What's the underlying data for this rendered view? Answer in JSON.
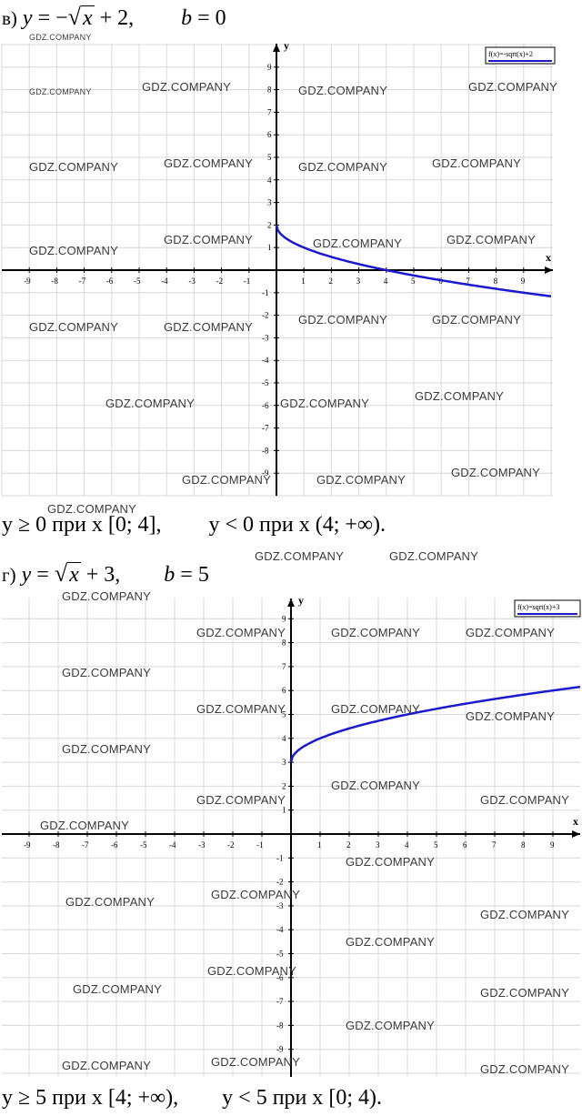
{
  "watermark": "GDZ.COMPANY",
  "part_v": {
    "label": "в)",
    "formula_y": "y",
    "formula_eq": "= −",
    "formula_x": "x",
    "formula_rest": "+ 2,",
    "b_label": "b",
    "b_eq": "= 0",
    "legend": "f(x)=-sqrt(x)+2",
    "answer_left": "y ≥ 0 при x [0; 4],",
    "answer_right": "y < 0 при x (4;  +∞)."
  },
  "part_g": {
    "label": "г)",
    "formula_y": "y",
    "formula_eq": "=",
    "formula_x": "x",
    "formula_rest": "+ 3,",
    "b_label": "b",
    "b_eq": "= 5",
    "legend": "f(x)=sqrt(x)+3",
    "answer_left": "y ≥ 5 при x [4;  +∞),",
    "answer_right": "y < 5 при x [0; 4)."
  },
  "chart_data": [
    {
      "type": "line",
      "title": "",
      "xlabel": "x",
      "ylabel": "y",
      "xlim": [
        -10,
        10
      ],
      "ylim": [
        -10,
        10
      ],
      "x_ticks": [
        "-9",
        "-8",
        "-7",
        "-6",
        "-5",
        "-4",
        "-3",
        "-2",
        "-1",
        "1",
        "2",
        "3",
        "4",
        "5",
        "6",
        "7",
        "8",
        "9"
      ],
      "y_ticks": [
        "9",
        "8",
        "7",
        "6",
        "5",
        "4",
        "3",
        "2",
        "1",
        "-1",
        "-2",
        "-3",
        "-4",
        "-5",
        "-6",
        "-7",
        "-8",
        "-9"
      ],
      "grid": true,
      "legend_position": "top-right",
      "color": "#1a1acc",
      "series": [
        {
          "name": "f(x)=-sqrt(x)+2",
          "x": [
            0,
            0.25,
            1,
            2,
            3,
            4,
            5,
            6,
            7,
            8,
            9,
            10
          ],
          "y": [
            2,
            1.5,
            1,
            0.59,
            0.27,
            0,
            -0.24,
            -0.45,
            -0.65,
            -0.83,
            -1,
            -1.16
          ]
        }
      ]
    },
    {
      "type": "line",
      "title": "",
      "xlabel": "x",
      "ylabel": "y",
      "xlim": [
        -10,
        10
      ],
      "ylim": [
        -10,
        10
      ],
      "x_ticks": [
        "-9",
        "-8",
        "-7",
        "-6",
        "-5",
        "-4",
        "-3",
        "-2",
        "-1",
        "1",
        "2",
        "3",
        "4",
        "5",
        "6",
        "7",
        "8",
        "9"
      ],
      "y_ticks": [
        "9",
        "8",
        "7",
        "6",
        "5",
        "4",
        "3",
        "2",
        "1",
        "-1",
        "-2",
        "-3",
        "-4",
        "-5",
        "-6",
        "-7",
        "-8",
        "-9"
      ],
      "grid": true,
      "legend_position": "top-right",
      "color": "#1a1acc",
      "series": [
        {
          "name": "f(x)=sqrt(x)+3",
          "x": [
            0,
            0.25,
            1,
            2,
            3,
            4,
            5,
            6,
            7,
            8,
            9,
            10
          ],
          "y": [
            3,
            3.5,
            4,
            4.41,
            4.73,
            5,
            5.24,
            5.45,
            5.65,
            5.83,
            6,
            6.16
          ]
        }
      ]
    }
  ]
}
